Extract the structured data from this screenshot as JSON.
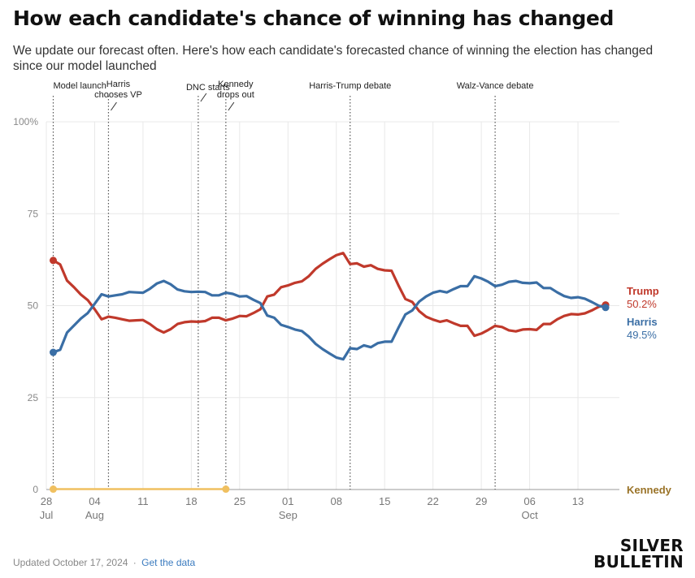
{
  "title": "How each candidate's chance of winning has changed",
  "subtitle": "We update our forecast often. Here's how each candidate's forecasted chance of winning the election has changed since our model launched",
  "footer": {
    "updated": "Updated October 17, 2024",
    "separator": "·",
    "link": "Get the data"
  },
  "brand": {
    "line1": "SILVER",
    "line2": "BULLETIN"
  },
  "colors": {
    "trump": "#c0392b",
    "harris": "#3a6ea5",
    "kennedy": "#9a7328",
    "kennedy_line": "#f0c060",
    "grid": "#e8e8e8"
  },
  "chart_data": {
    "type": "line",
    "ylim": [
      0,
      100
    ],
    "xlim": [
      "2024-07-28",
      "2024-10-19"
    ],
    "grid": true,
    "y_ticks": [
      {
        "value": 0,
        "label": "0"
      },
      {
        "value": 25,
        "label": "25"
      },
      {
        "value": 50,
        "label": "50"
      },
      {
        "value": 75,
        "label": "75"
      },
      {
        "value": 100,
        "label": "100%"
      }
    ],
    "x_ticks": [
      {
        "date": "2024-07-28",
        "label": "28",
        "month": "Jul"
      },
      {
        "date": "2024-08-04",
        "label": "04",
        "month": "Aug"
      },
      {
        "date": "2024-08-11",
        "label": "11",
        "month": ""
      },
      {
        "date": "2024-08-18",
        "label": "18",
        "month": ""
      },
      {
        "date": "2024-08-25",
        "label": "25",
        "month": ""
      },
      {
        "date": "2024-09-01",
        "label": "01",
        "month": "Sep"
      },
      {
        "date": "2024-09-08",
        "label": "08",
        "month": ""
      },
      {
        "date": "2024-09-15",
        "label": "15",
        "month": ""
      },
      {
        "date": "2024-09-22",
        "label": "22",
        "month": ""
      },
      {
        "date": "2024-09-29",
        "label": "29",
        "month": ""
      },
      {
        "date": "2024-10-06",
        "label": "06",
        "month": "Oct"
      },
      {
        "date": "2024-10-13",
        "label": "13",
        "month": ""
      }
    ],
    "events": [
      {
        "date": "2024-07-29",
        "label": [
          "Model launch"
        ],
        "leader": false
      },
      {
        "date": "2024-08-06",
        "label": [
          "Harris",
          "chooses VP"
        ],
        "leader": true
      },
      {
        "date": "2024-08-19",
        "label": [
          "DNC starts"
        ],
        "leader": true
      },
      {
        "date": "2024-08-23",
        "label": [
          "Kennedy",
          "drops out"
        ],
        "leader": true
      },
      {
        "date": "2024-09-10",
        "label": [
          "Harris-Trump debate"
        ],
        "leader": false
      },
      {
        "date": "2024-10-01",
        "label": [
          "Walz-Vance debate"
        ],
        "leader": false
      }
    ],
    "series": [
      {
        "name": "Trump",
        "end_value_label": "50.2%",
        "points": [
          [
            "2024-07-29",
            62.3
          ],
          [
            "2024-07-30",
            61.2
          ],
          [
            "2024-07-31",
            56.8
          ],
          [
            "2024-08-01",
            55.0
          ],
          [
            "2024-08-02",
            53.0
          ],
          [
            "2024-08-03",
            51.5
          ],
          [
            "2024-08-04",
            49.0
          ],
          [
            "2024-08-05",
            46.3
          ],
          [
            "2024-08-06",
            47.0
          ],
          [
            "2024-08-07",
            46.7
          ],
          [
            "2024-08-08",
            46.3
          ],
          [
            "2024-08-09",
            45.9
          ],
          [
            "2024-08-10",
            46.0
          ],
          [
            "2024-08-11",
            46.1
          ],
          [
            "2024-08-12",
            45.0
          ],
          [
            "2024-08-13",
            43.6
          ],
          [
            "2024-08-14",
            42.7
          ],
          [
            "2024-08-15",
            43.6
          ],
          [
            "2024-08-16",
            45.0
          ],
          [
            "2024-08-17",
            45.5
          ],
          [
            "2024-08-18",
            45.7
          ],
          [
            "2024-08-19",
            45.6
          ],
          [
            "2024-08-20",
            45.8
          ],
          [
            "2024-08-21",
            46.7
          ],
          [
            "2024-08-22",
            46.7
          ],
          [
            "2024-08-23",
            46.0
          ],
          [
            "2024-08-24",
            46.5
          ],
          [
            "2024-08-25",
            47.2
          ],
          [
            "2024-08-26",
            47.1
          ],
          [
            "2024-08-27",
            48.0
          ],
          [
            "2024-08-28",
            49.0
          ],
          [
            "2024-08-29",
            52.5
          ],
          [
            "2024-08-30",
            53.0
          ],
          [
            "2024-08-31",
            55.0
          ],
          [
            "2024-09-01",
            55.5
          ],
          [
            "2024-09-02",
            56.2
          ],
          [
            "2024-09-03",
            56.6
          ],
          [
            "2024-09-04",
            58.0
          ],
          [
            "2024-09-05",
            60.0
          ],
          [
            "2024-09-06",
            61.4
          ],
          [
            "2024-09-07",
            62.6
          ],
          [
            "2024-09-08",
            63.7
          ],
          [
            "2024-09-09",
            64.3
          ],
          [
            "2024-09-10",
            61.3
          ],
          [
            "2024-09-11",
            61.5
          ],
          [
            "2024-09-12",
            60.6
          ],
          [
            "2024-09-13",
            61.0
          ],
          [
            "2024-09-14",
            60.0
          ],
          [
            "2024-09-15",
            59.6
          ],
          [
            "2024-09-16",
            59.5
          ],
          [
            "2024-09-17",
            55.5
          ],
          [
            "2024-09-18",
            51.8
          ],
          [
            "2024-09-19",
            51.0
          ],
          [
            "2024-09-20",
            48.5
          ],
          [
            "2024-09-21",
            47.0
          ],
          [
            "2024-09-22",
            46.2
          ],
          [
            "2024-09-23",
            45.6
          ],
          [
            "2024-09-24",
            46.0
          ],
          [
            "2024-09-25",
            45.2
          ],
          [
            "2024-09-26",
            44.5
          ],
          [
            "2024-09-27",
            44.5
          ],
          [
            "2024-09-28",
            41.8
          ],
          [
            "2024-09-29",
            42.4
          ],
          [
            "2024-09-30",
            43.4
          ],
          [
            "2024-10-01",
            44.5
          ],
          [
            "2024-10-02",
            44.2
          ],
          [
            "2024-10-03",
            43.3
          ],
          [
            "2024-10-04",
            43.0
          ],
          [
            "2024-10-05",
            43.5
          ],
          [
            "2024-10-06",
            43.6
          ],
          [
            "2024-10-07",
            43.4
          ],
          [
            "2024-10-08",
            45.0
          ],
          [
            "2024-10-09",
            45.0
          ],
          [
            "2024-10-10",
            46.3
          ],
          [
            "2024-10-11",
            47.2
          ],
          [
            "2024-10-12",
            47.7
          ],
          [
            "2024-10-13",
            47.6
          ],
          [
            "2024-10-14",
            47.9
          ],
          [
            "2024-10-15",
            48.7
          ],
          [
            "2024-10-16",
            49.7
          ],
          [
            "2024-10-17",
            50.2
          ]
        ]
      },
      {
        "name": "Harris",
        "end_value_label": "49.5%",
        "points": [
          [
            "2024-07-29",
            37.3
          ],
          [
            "2024-07-30",
            38.0
          ],
          [
            "2024-07-31",
            42.7
          ],
          [
            "2024-08-01",
            44.6
          ],
          [
            "2024-08-02",
            46.5
          ],
          [
            "2024-08-03",
            48.0
          ],
          [
            "2024-08-04",
            50.5
          ],
          [
            "2024-08-05",
            53.1
          ],
          [
            "2024-08-06",
            52.5
          ],
          [
            "2024-08-07",
            52.8
          ],
          [
            "2024-08-08",
            53.1
          ],
          [
            "2024-08-09",
            53.7
          ],
          [
            "2024-08-10",
            53.6
          ],
          [
            "2024-08-11",
            53.5
          ],
          [
            "2024-08-12",
            54.6
          ],
          [
            "2024-08-13",
            56.0
          ],
          [
            "2024-08-14",
            56.7
          ],
          [
            "2024-08-15",
            55.8
          ],
          [
            "2024-08-16",
            54.4
          ],
          [
            "2024-08-17",
            53.9
          ],
          [
            "2024-08-18",
            53.7
          ],
          [
            "2024-08-19",
            53.8
          ],
          [
            "2024-08-20",
            53.7
          ],
          [
            "2024-08-21",
            52.8
          ],
          [
            "2024-08-22",
            52.8
          ],
          [
            "2024-08-23",
            53.5
          ],
          [
            "2024-08-24",
            53.2
          ],
          [
            "2024-08-25",
            52.5
          ],
          [
            "2024-08-26",
            52.6
          ],
          [
            "2024-08-27",
            51.6
          ],
          [
            "2024-08-28",
            50.7
          ],
          [
            "2024-08-29",
            47.3
          ],
          [
            "2024-08-30",
            46.7
          ],
          [
            "2024-08-31",
            44.8
          ],
          [
            "2024-09-01",
            44.2
          ],
          [
            "2024-09-02",
            43.5
          ],
          [
            "2024-09-03",
            43.1
          ],
          [
            "2024-09-04",
            41.6
          ],
          [
            "2024-09-05",
            39.6
          ],
          [
            "2024-09-06",
            38.2
          ],
          [
            "2024-09-07",
            37.0
          ],
          [
            "2024-09-08",
            35.9
          ],
          [
            "2024-09-09",
            35.4
          ],
          [
            "2024-09-10",
            38.4
          ],
          [
            "2024-09-11",
            38.2
          ],
          [
            "2024-09-12",
            39.2
          ],
          [
            "2024-09-13",
            38.7
          ],
          [
            "2024-09-14",
            39.8
          ],
          [
            "2024-09-15",
            40.2
          ],
          [
            "2024-09-16",
            40.2
          ],
          [
            "2024-09-17",
            44.0
          ],
          [
            "2024-09-18",
            47.6
          ],
          [
            "2024-09-19",
            48.7
          ],
          [
            "2024-09-20",
            51.1
          ],
          [
            "2024-09-21",
            52.5
          ],
          [
            "2024-09-22",
            53.5
          ],
          [
            "2024-09-23",
            54.0
          ],
          [
            "2024-09-24",
            53.6
          ],
          [
            "2024-09-25",
            54.5
          ],
          [
            "2024-09-26",
            55.3
          ],
          [
            "2024-09-27",
            55.3
          ],
          [
            "2024-09-28",
            58.0
          ],
          [
            "2024-09-29",
            57.4
          ],
          [
            "2024-09-30",
            56.5
          ],
          [
            "2024-10-01",
            55.3
          ],
          [
            "2024-10-02",
            55.7
          ],
          [
            "2024-10-03",
            56.5
          ],
          [
            "2024-10-04",
            56.7
          ],
          [
            "2024-10-05",
            56.2
          ],
          [
            "2024-10-06",
            56.1
          ],
          [
            "2024-10-07",
            56.3
          ],
          [
            "2024-10-08",
            54.8
          ],
          [
            "2024-10-09",
            54.8
          ],
          [
            "2024-10-10",
            53.6
          ],
          [
            "2024-10-11",
            52.6
          ],
          [
            "2024-10-12",
            52.1
          ],
          [
            "2024-10-13",
            52.3
          ],
          [
            "2024-10-14",
            51.9
          ],
          [
            "2024-10-15",
            51.0
          ],
          [
            "2024-10-16",
            50.0
          ],
          [
            "2024-10-17",
            49.5
          ]
        ]
      },
      {
        "name": "Kennedy",
        "end_value_label": "",
        "points": [
          [
            "2024-07-29",
            0.1
          ],
          [
            "2024-08-05",
            0.1
          ],
          [
            "2024-08-12",
            0.1
          ],
          [
            "2024-08-19",
            0.1
          ],
          [
            "2024-08-23",
            0.1
          ]
        ]
      }
    ]
  }
}
